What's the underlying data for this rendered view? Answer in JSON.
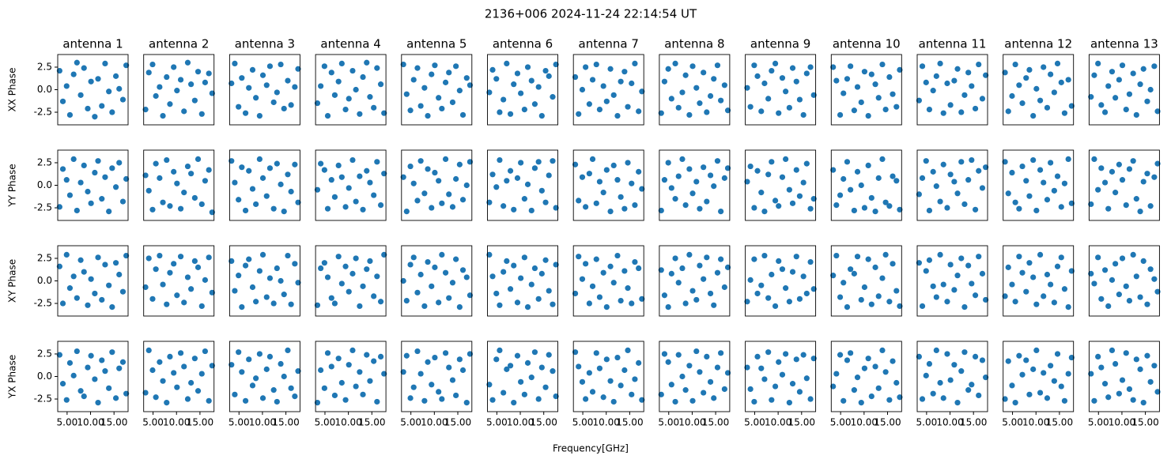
{
  "chart_data": {
    "type": "scatter",
    "title": "2136+006 2024-11-24 22:14:54 UT",
    "xlabel": "Frequency[GHz]",
    "color": "#1f77b4",
    "xlim": [
      3,
      18
    ],
    "ylim": [
      -3.9,
      3.9
    ],
    "xticks": [
      {
        "value": 5,
        "label": "5.00"
      },
      {
        "value": 10,
        "label": "10.00"
      },
      {
        "value": 15,
        "label": "15.00"
      }
    ],
    "yticks": [
      -2.5,
      {
        "value": 0,
        "label": "0.0"
      },
      2.5
    ],
    "columns": [
      "antenna 1",
      "antenna 2",
      "antenna 3",
      "antenna 4",
      "antenna 5",
      "antenna 6",
      "antenna 7",
      "antenna 8",
      "antenna 9",
      "antenna 10",
      "antenna 11",
      "antenna 12",
      "antenna 13"
    ],
    "rows": [
      "XX Phase",
      "YY Phase",
      "XY Phase",
      "YX Phase"
    ],
    "x": [
      3.4,
      4.1,
      4.9,
      5.6,
      6.4,
      7.1,
      7.9,
      8.6,
      9.4,
      10.1,
      10.9,
      11.6,
      12.4,
      13.1,
      13.9,
      14.6,
      15.4,
      16.1,
      16.9,
      17.6
    ],
    "panels": [
      [
        [
          2.1,
          -1.3,
          0.4,
          -2.8,
          1.7,
          3.0,
          -0.6,
          2.4,
          -2.1,
          0.9,
          -3.0,
          1.2,
          -1.8,
          2.9,
          -0.2,
          -2.5,
          1.5,
          0.1,
          -1.1,
          2.7
        ],
        [
          -2.2,
          1.9,
          2.8,
          -0.7,
          0.3,
          -2.9,
          1.4,
          -1.6,
          2.5,
          -0.1,
          1.1,
          -2.4,
          3.0,
          0.6,
          -1.2,
          2.0,
          -2.7,
          0.8,
          1.8,
          -0.4
        ],
        [
          0.7,
          2.9,
          -1.9,
          1.3,
          -2.6,
          0.2,
          2.2,
          -0.9,
          -2.9,
          1.6,
          0.5,
          2.6,
          -1.4,
          -0.3,
          2.8,
          -2.1,
          1.0,
          -1.7,
          0.3,
          2.3
        ],
        [
          -1.5,
          0.4,
          2.6,
          -2.9,
          1.9,
          -0.6,
          0.9,
          2.9,
          -2.2,
          -1.0,
          2.1,
          0.0,
          -2.7,
          1.4,
          3.0,
          -0.8,
          -2.0,
          2.4,
          0.6,
          -2.6
        ],
        [
          2.8,
          -0.5,
          -2.3,
          1.1,
          2.4,
          -1.8,
          0.2,
          -2.9,
          1.7,
          2.7,
          -0.9,
          -2.1,
          0.8,
          1.9,
          -1.4,
          2.6,
          -0.1,
          -2.8,
          1.3,
          0.5
        ],
        [
          -0.3,
          2.2,
          1.2,
          -2.5,
          -1.1,
          2.9,
          -2.7,
          0.6,
          1.8,
          -0.4,
          -2.2,
          2.5,
          1.0,
          -1.6,
          0.3,
          -2.9,
          2.1,
          1.5,
          -0.8,
          2.8
        ],
        [
          1.4,
          -2.7,
          0.0,
          2.5,
          -1.6,
          1.1,
          2.8,
          -2.2,
          0.4,
          -1.3,
          2.3,
          -0.6,
          -2.9,
          0.9,
          2.0,
          -1.9,
          0.7,
          2.9,
          -2.4,
          -0.2
        ],
        [
          -2.6,
          0.9,
          2.3,
          -1.0,
          2.9,
          -2.0,
          -0.3,
          1.6,
          -2.8,
          2.6,
          0.2,
          -1.5,
          1.9,
          -2.5,
          -0.7,
          1.2,
          2.7,
          -1.2,
          0.5,
          -2.3
        ],
        [
          0.2,
          -1.9,
          2.7,
          1.5,
          -2.4,
          0.7,
          -1.0,
          2.1,
          2.9,
          -2.6,
          1.3,
          -0.2,
          -2.0,
          2.4,
          0.9,
          -1.1,
          -2.8,
          1.8,
          2.5,
          -0.6
        ],
        [
          2.5,
          1.0,
          -2.8,
          -0.4,
          1.2,
          2.6,
          -2.3,
          0.3,
          -1.4,
          2.0,
          -2.9,
          1.7,
          0.6,
          -0.9,
          2.8,
          -2.2,
          1.4,
          -0.5,
          -1.9,
          2.2
        ],
        [
          -1.2,
          2.6,
          0.8,
          -2.2,
          -0.1,
          1.5,
          2.9,
          -2.6,
          0.7,
          -1.7,
          1.0,
          2.3,
          -2.5,
          -0.6,
          1.9,
          0.4,
          -2.1,
          2.8,
          -1.0,
          1.6
        ],
        [
          1.9,
          -2.4,
          -0.7,
          2.8,
          0.5,
          -1.5,
          1.3,
          2.2,
          -2.9,
          0.1,
          -1.2,
          2.5,
          -2.0,
          1.7,
          -0.3,
          2.9,
          0.8,
          -2.6,
          1.1,
          -1.8
        ],
        [
          -0.8,
          1.6,
          2.9,
          -1.7,
          -2.5,
          0.4,
          2.0,
          -0.9,
          1.1,
          2.7,
          -2.2,
          -0.5,
          1.8,
          -2.8,
          0.6,
          2.3,
          -1.3,
          0.0,
          2.6,
          -2.4
        ]
      ],
      [
        [
          -2.4,
          1.8,
          0.6,
          -1.1,
          2.9,
          -2.8,
          0.3,
          2.2,
          -0.7,
          -2.0,
          1.4,
          2.7,
          -1.5,
          0.9,
          -2.9,
          1.9,
          -0.2,
          2.5,
          -1.8,
          0.7
        ],
        [
          1.1,
          -0.6,
          -2.7,
          2.4,
          0.8,
          -1.9,
          2.8,
          -2.3,
          1.5,
          0.2,
          -2.6,
          -0.8,
          2.1,
          1.3,
          -1.4,
          2.9,
          -2.1,
          0.5,
          1.7,
          -3.0
        ],
        [
          2.7,
          0.3,
          -1.6,
          2.0,
          -2.8,
          1.6,
          -0.4,
          -2.1,
          2.9,
          0.8,
          -1.2,
          1.9,
          -2.6,
          2.4,
          0.1,
          -2.9,
          1.2,
          -0.7,
          2.3,
          -1.9
        ],
        [
          -0.5,
          2.4,
          1.7,
          -2.6,
          0.6,
          -1.3,
          2.2,
          0.9,
          -2.4,
          -0.3,
          2.8,
          -1.8,
          1.0,
          -2.7,
          1.6,
          0.3,
          -1.1,
          2.6,
          -2.2,
          1.3
        ],
        [
          0.9,
          -2.9,
          2.1,
          0.2,
          -1.7,
          2.7,
          -0.9,
          1.8,
          -2.5,
          1.4,
          0.5,
          -2.0,
          2.9,
          -1.0,
          -2.4,
          0.7,
          2.3,
          -1.6,
          0.0,
          2.6
        ],
        [
          -1.9,
          1.2,
          -0.2,
          2.8,
          -2.3,
          0.5,
          1.6,
          -2.7,
          0.8,
          2.5,
          -1.5,
          0.1,
          -2.8,
          1.9,
          2.6,
          -0.6,
          -1.9,
          1.1,
          2.7,
          -2.5
        ],
        [
          2.3,
          -1.7,
          0.9,
          -2.4,
          1.3,
          2.9,
          -2.0,
          0.4,
          -0.8,
          1.7,
          -2.9,
          2.2,
          0.6,
          -1.3,
          -2.6,
          2.5,
          0.2,
          -2.2,
          1.5,
          -0.4
        ],
        [
          -2.8,
          0.6,
          2.5,
          -0.3,
          -1.5,
          1.0,
          2.9,
          -2.2,
          1.8,
          -0.9,
          0.4,
          -2.6,
          2.0,
          -1.8,
          1.1,
          -0.1,
          2.7,
          -2.9,
          0.8,
          1.9
        ],
        [
          0.4,
          2.1,
          -2.5,
          1.6,
          -0.8,
          -2.9,
          1.2,
          2.6,
          -1.7,
          -2.3,
          0.9,
          2.9,
          -0.5,
          -2.0,
          1.7,
          -1.2,
          0.3,
          2.4,
          -2.6,
          -1.5
        ],
        [
          1.7,
          -2.2,
          -1.1,
          0.7,
          2.6,
          -0.5,
          -2.8,
          1.5,
          0.0,
          -2.5,
          2.2,
          -1.4,
          -2.9,
          0.8,
          2.9,
          -1.9,
          -2.3,
          1.0,
          0.5,
          -2.7
        ],
        [
          -1.0,
          0.8,
          2.7,
          -2.8,
          1.5,
          -0.1,
          -1.8,
          2.3,
          -2.5,
          1.2,
          0.4,
          -0.9,
          2.6,
          -2.1,
          0.6,
          2.8,
          -2.7,
          1.6,
          -0.3,
          2.0
        ],
        [
          2.6,
          -0.9,
          1.4,
          -1.9,
          -2.6,
          2.1,
          0.5,
          -1.2,
          2.8,
          -2.8,
          1.7,
          0.3,
          -1.6,
          2.5,
          -0.6,
          1.0,
          -2.4,
          0.2,
          2.9,
          -2.0
        ],
        [
          -2.1,
          2.9,
          -0.5,
          1.9,
          0.3,
          -2.6,
          1.5,
          -0.8,
          2.3,
          0.6,
          -2.2,
          1.8,
          2.7,
          -1.5,
          -2.9,
          0.4,
          1.3,
          -2.3,
          0.9,
          2.4
        ]
      ],
      [
        [
          1.6,
          -2.5,
          2.9,
          -0.8,
          0.5,
          -1.9,
          2.3,
          1.0,
          -2.7,
          0.2,
          -1.4,
          2.6,
          -2.1,
          1.8,
          -0.5,
          -2.9,
          2.0,
          0.7,
          -1.2,
          2.8
        ],
        [
          -0.7,
          2.5,
          -2.0,
          1.3,
          2.8,
          -0.4,
          -2.6,
          0.9,
          1.9,
          -1.6,
          2.7,
          -2.4,
          0.4,
          -0.9,
          2.2,
          1.5,
          -2.8,
          0.1,
          2.6,
          -1.3
        ],
        [
          2.2,
          -1.1,
          0.6,
          -2.9,
          1.7,
          2.4,
          -0.7,
          -2.3,
          1.1,
          2.9,
          -1.8,
          0.3,
          -2.5,
          1.4,
          0.0,
          -1.5,
          2.8,
          -2.6,
          1.9,
          -0.2
        ],
        [
          -2.7,
          1.4,
          2.0,
          0.4,
          -1.9,
          -2.5,
          2.7,
          -0.3,
          1.6,
          -1.2,
          0.8,
          2.5,
          -2.8,
          -0.6,
          1.3,
          2.2,
          -1.7,
          0.5,
          -2.3,
          2.9
        ],
        [
          0.0,
          -2.2,
          1.8,
          2.6,
          -1.3,
          0.7,
          -2.8,
          2.1,
          -0.6,
          1.5,
          -2.4,
          2.9,
          0.9,
          -1.9,
          -0.2,
          2.4,
          -2.9,
          1.2,
          0.4,
          -1.6
        ],
        [
          2.9,
          0.5,
          -1.4,
          -2.7,
          1.0,
          2.2,
          -0.9,
          1.7,
          -2.4,
          0.3,
          2.6,
          -2.9,
          -0.4,
          1.4,
          -2.0,
          0.8,
          2.3,
          -1.1,
          -2.6,
          1.8
        ],
        [
          -1.4,
          2.7,
          0.2,
          1.9,
          -2.5,
          -0.6,
          2.4,
          -1.8,
          0.9,
          -2.9,
          1.6,
          -0.2,
          2.8,
          -2.2,
          1.1,
          -0.8,
          -2.5,
          2.1,
          1.4,
          -2.0
        ],
        [
          1.2,
          -1.6,
          -2.9,
          0.8,
          2.5,
          -0.2,
          1.4,
          -2.5,
          2.9,
          -1.1,
          -2.1,
          1.7,
          0.2,
          2.6,
          -1.4,
          -2.7,
          0.9,
          2.4,
          -0.7,
          1.5
        ],
        [
          -2.3,
          0.1,
          2.4,
          -1.4,
          -0.5,
          2.8,
          -1.9,
          0.7,
          -2.8,
          2.2,
          1.3,
          -0.8,
          -2.3,
          1.0,
          2.7,
          -2.0,
          0.5,
          -1.4,
          2.1,
          -0.9
        ],
        [
          0.6,
          2.8,
          -1.8,
          -0.2,
          -2.9,
          1.3,
          0.8,
          2.7,
          -2.1,
          -0.7,
          2.4,
          -2.6,
          1.5,
          -1.7,
          0.3,
          2.9,
          -2.3,
          1.9,
          -1.1,
          -2.8
        ],
        [
          2.0,
          -2.8,
          1.1,
          2.3,
          -0.6,
          -1.8,
          2.9,
          -0.4,
          -2.3,
          1.8,
          -1.0,
          0.6,
          2.5,
          -2.9,
          1.7,
          -0.3,
          -1.6,
          2.7,
          0.8,
          -2.1
        ],
        [
          -1.7,
          1.5,
          -0.4,
          -2.3,
          2.7,
          0.9,
          -1.2,
          2.0,
          0.4,
          -2.6,
          2.9,
          -1.7,
          0.7,
          -0.4,
          -2.4,
          1.6,
          2.6,
          -0.9,
          -2.9,
          1.1
        ],
        [
          0.8,
          -0.3,
          2.6,
          -2.0,
          1.2,
          -2.8,
          0.1,
          1.9,
          -1.5,
          2.5,
          -0.6,
          -2.2,
          2.9,
          0.5,
          -1.8,
          2.2,
          -2.6,
          1.3,
          0.2,
          -1.2
        ]
      ],
      [
        [
          2.4,
          -0.8,
          -2.6,
          1.5,
          0.1,
          2.8,
          -1.6,
          -2.2,
          1.0,
          2.3,
          -0.3,
          -2.9,
          1.8,
          0.6,
          -1.3,
          2.7,
          -2.4,
          0.9,
          1.6,
          -1.9
        ],
        [
          -1.8,
          2.9,
          0.7,
          -2.3,
          1.6,
          -0.5,
          -2.9,
          2.2,
          0.4,
          -1.2,
          2.6,
          1.1,
          -2.5,
          -0.7,
          2.0,
          -1.6,
          0.3,
          2.8,
          -2.7,
          1.2
        ],
        [
          1.3,
          -2.0,
          2.7,
          0.5,
          -2.7,
          1.9,
          -1.0,
          -0.2,
          2.5,
          -2.4,
          0.8,
          2.2,
          -1.5,
          -2.8,
          1.4,
          0.0,
          2.9,
          -1.3,
          -2.2,
          0.6
        ],
        [
          -2.9,
          0.7,
          -1.3,
          2.6,
          1.1,
          -2.1,
          2.0,
          -0.7,
          -2.6,
          1.3,
          2.9,
          -1.1,
          0.5,
          -2.0,
          2.4,
          -0.5,
          1.7,
          -2.8,
          2.2,
          0.3
        ],
        [
          0.5,
          2.3,
          -2.4,
          -1.2,
          2.8,
          0.3,
          -2.7,
          1.6,
          -0.9,
          2.1,
          -1.7,
          -2.5,
          2.6,
          1.0,
          -0.4,
          -2.1,
          1.9,
          0.7,
          -2.9,
          2.5
        ],
        [
          -0.9,
          -2.6,
          1.9,
          2.9,
          -1.8,
          0.8,
          1.2,
          -2.9,
          2.3,
          -0.6,
          -2.0,
          1.5,
          -0.1,
          2.7,
          -2.5,
          1.0,
          -1.2,
          2.4,
          0.6,
          -2.2
        ],
        [
          2.7,
          1.1,
          -0.6,
          -2.5,
          0.4,
          -1.7,
          2.6,
          0.9,
          -2.3,
          1.9,
          -0.5,
          -2.8,
          2.1,
          -1.0,
          0.7,
          2.9,
          -2.0,
          -0.3,
          1.5,
          -2.6
        ],
        [
          -2.0,
          2.5,
          1.6,
          -0.9,
          -2.8,
          2.4,
          0.0,
          -1.5,
          1.2,
          -2.7,
          2.8,
          0.5,
          -1.8,
          2.2,
          -0.6,
          -2.4,
          1.0,
          2.6,
          -1.4,
          0.4
        ],
        [
          1.0,
          -1.4,
          -2.8,
          2.2,
          0.9,
          -0.3,
          2.7,
          -2.6,
          -1.1,
          1.6,
          0.2,
          2.5,
          -2.9,
          -0.8,
          1.9,
          -1.7,
          2.4,
          -0.2,
          -2.5,
          2.0
        ],
        [
          -1.1,
          0.3,
          2.4,
          -2.7,
          1.8,
          2.6,
          -1.5,
          -0.1,
          -2.9,
          0.9,
          2.0,
          -2.2,
          1.1,
          -1.3,
          2.9,
          0.5,
          -2.6,
          1.7,
          -0.7,
          -2.3
        ],
        [
          2.2,
          -2.5,
          0.1,
          1.4,
          -1.9,
          2.9,
          -0.7,
          -2.4,
          2.5,
          -0.4,
          1.3,
          -2.9,
          0.6,
          2.7,
          -1.5,
          -0.9,
          2.2,
          -2.1,
          1.8,
          -0.1
        ],
        [
          -2.5,
          1.7,
          -1.0,
          -2.9,
          2.3,
          0.2,
          1.8,
          -2.0,
          0.8,
          2.9,
          -1.8,
          0.4,
          -2.4,
          1.2,
          -0.5,
          2.5,
          -1.1,
          -2.7,
          0.3,
          2.1
        ],
        [
          0.3,
          -2.7,
          2.2,
          1.0,
          -0.8,
          -2.3,
          2.9,
          1.4,
          -1.9,
          -0.4,
          2.6,
          -1.4,
          -2.6,
          1.9,
          0.8,
          -2.9,
          2.3,
          -0.6,
          1.2,
          -1.7
        ]
      ]
    ]
  }
}
